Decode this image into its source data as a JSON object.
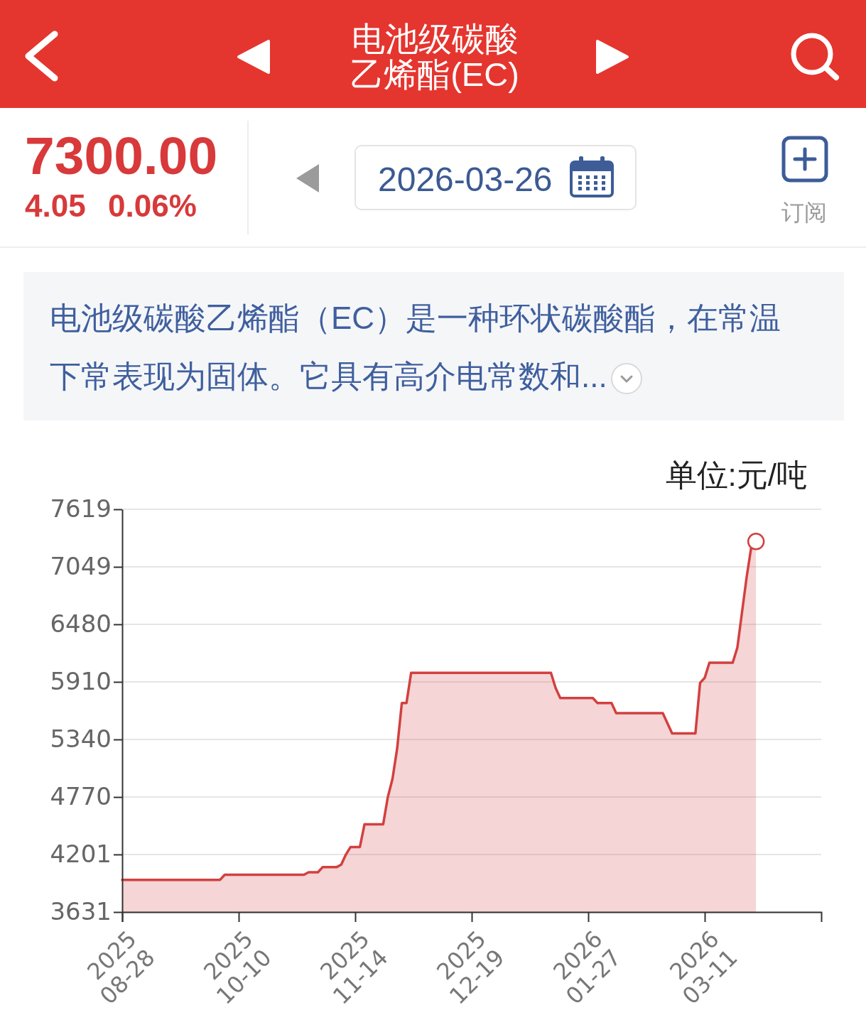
{
  "chart_data": {
    "type": "area",
    "title": "电池级碳酸乙烯酯(EC)",
    "ylabel": "单位:元/吨",
    "annotations": [
      "7300.00",
      "4.05",
      "0.06%",
      "2026-03-26",
      "订阅",
      "电池级碳酸乙烯酯（EC）是一种环状碳酸酯，在常温下常表现为固体。它具有高介电常数和..."
    ],
    "categories": [
      "2025\n08-28",
      null,
      null,
      null,
      null,
      null,
      null,
      null,
      null,
      null,
      null,
      null,
      null,
      null,
      null,
      null,
      null,
      null,
      null,
      null,
      null,
      null,
      null,
      null,
      null,
      "2025\n10-10",
      null,
      null,
      null,
      null,
      null,
      null,
      null,
      null,
      null,
      null,
      null,
      null,
      null,
      null,
      null,
      null,
      null,
      null,
      null,
      null,
      null,
      null,
      null,
      null,
      "2025\n11-14",
      null,
      null,
      null,
      null,
      null,
      null,
      null,
      null,
      null,
      null,
      null,
      null,
      null,
      null,
      null,
      null,
      null,
      null,
      null,
      null,
      null,
      null,
      null,
      null,
      "2025\n12-19",
      null,
      null,
      null,
      null,
      null,
      null,
      null,
      null,
      null,
      null,
      null,
      null,
      null,
      null,
      null,
      null,
      null,
      null,
      null,
      null,
      null,
      null,
      null,
      null,
      "2026\n01-27",
      null,
      null,
      null,
      null,
      null,
      null,
      null,
      null,
      null,
      null,
      null,
      null,
      null,
      null,
      null,
      null,
      null,
      null,
      null,
      null,
      null,
      null,
      null,
      null,
      "2026\n03-11",
      null,
      null,
      null,
      null,
      null,
      null,
      null,
      null,
      null,
      null,
      null,
      null,
      null,
      null,
      null,
      null,
      null,
      null,
      null,
      null,
      null,
      null,
      null,
      null,
      null
    ],
    "series": [
      {
        "color": "#d2403f",
        "values": [
          3950,
          3950,
          3950,
          3950,
          3950,
          3950,
          3950,
          3950,
          3950,
          3950,
          3950,
          3950,
          3950,
          3950,
          3950,
          3950,
          3950,
          3950,
          3950,
          3950,
          3950,
          3950,
          4000,
          4000,
          4000,
          4000,
          4000,
          4000,
          4000,
          4000,
          4000,
          4000,
          4000,
          4000,
          4000,
          4000,
          4000,
          4000,
          4000,
          4000,
          4025,
          4025,
          4025,
          4075,
          4075,
          4075,
          4075,
          4100,
          4200,
          4275,
          4275,
          4275,
          4500,
          4500,
          4500,
          4500,
          4500,
          4770,
          4950,
          5250,
          5700,
          5700,
          6000,
          6000,
          6000,
          6000,
          6000,
          6000,
          6000,
          6000,
          6000,
          6000,
          6000,
          6000,
          6000,
          6000,
          6000,
          6000,
          6000,
          6000,
          6000,
          6000,
          6000,
          6000,
          6000,
          6000,
          6000,
          6000,
          6000,
          6000,
          6000,
          6000,
          6000,
          5850,
          5750,
          5750,
          5750,
          5750,
          5750,
          5750,
          5750,
          5750,
          5700,
          5700,
          5700,
          5700,
          5600,
          5600,
          5600,
          5600,
          5600,
          5600,
          5600,
          5600,
          5600,
          5600,
          5600,
          5500,
          5400,
          5400,
          5400,
          5400,
          5400,
          5400,
          5900,
          5950,
          6100,
          6100,
          6100,
          6100,
          6100,
          6100,
          6250,
          6600,
          6950,
          7250,
          7300,
          null,
          null,
          null,
          null,
          null,
          null,
          null,
          null,
          null,
          null,
          null,
          null,
          null,
          null
        ]
      },
      {
        "type": "scatter",
        "color": "#d2403f",
        "marker": "circle",
        "values": [
          null,
          null,
          null,
          null,
          null,
          null,
          null,
          null,
          null,
          null,
          null,
          null,
          null,
          null,
          null,
          null,
          null,
          null,
          null,
          null,
          null,
          null,
          null,
          null,
          null,
          null,
          null,
          null,
          null,
          null,
          null,
          null,
          null,
          null,
          null,
          null,
          null,
          null,
          null,
          null,
          null,
          null,
          null,
          null,
          null,
          null,
          null,
          null,
          null,
          null,
          null,
          null,
          null,
          null,
          null,
          null,
          null,
          null,
          null,
          null,
          null,
          null,
          null,
          null,
          null,
          null,
          null,
          null,
          null,
          null,
          null,
          null,
          null,
          null,
          null,
          null,
          null,
          null,
          null,
          null,
          null,
          null,
          null,
          null,
          null,
          null,
          null,
          null,
          null,
          null,
          null,
          null,
          null,
          null,
          null,
          null,
          null,
          null,
          null,
          null,
          null,
          null,
          null,
          null,
          null,
          null,
          null,
          null,
          null,
          null,
          null,
          null,
          null,
          null,
          null,
          null,
          null,
          null,
          null,
          null,
          null,
          null,
          null,
          null,
          null,
          null,
          null,
          null,
          null,
          null,
          null,
          null,
          null,
          null,
          null,
          null,
          7300,
          null,
          null,
          null,
          null,
          null,
          null,
          null,
          null,
          null,
          null,
          null,
          null,
          null,
          null
        ]
      }
    ],
    "ylim": [
      3631,
      7619
    ],
    "yticks": [
      3631,
      4201,
      4770,
      5340,
      5910,
      6480,
      7049,
      7619
    ],
    "grid": "y"
  }
}
